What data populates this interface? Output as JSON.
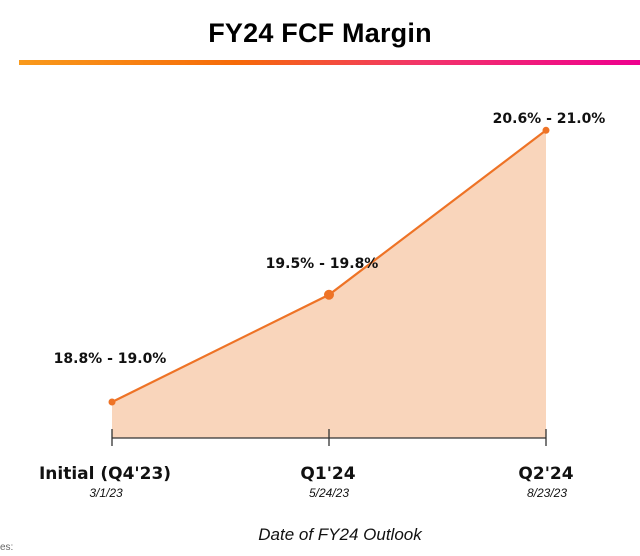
{
  "chart_data": {
    "type": "area",
    "title": "FY24 FCF Margin",
    "xlabel": "Date of FY24 Outlook",
    "ylabel": "",
    "categories": [
      "Initial (Q4'23)",
      "Q1'24",
      "Q2'24"
    ],
    "dates": [
      "3/1/23",
      "5/24/23",
      "8/23/23"
    ],
    "series": [
      {
        "low": [
          18.8,
          19.5,
          20.6
        ],
        "high": [
          19.0,
          19.8,
          21.0
        ],
        "labels": [
          "18.8% - 19.0%",
          "19.5% - 19.8%",
          "20.6% - 21.0%"
        ]
      }
    ],
    "grid": false,
    "colors": {
      "line": "#ee7326",
      "fill": "#f9d5bb",
      "axis": "#333333",
      "title_rule_start": "#f99a1c",
      "title_rule_end": "#ee008e"
    }
  },
  "footer": {
    "note": "es:"
  }
}
